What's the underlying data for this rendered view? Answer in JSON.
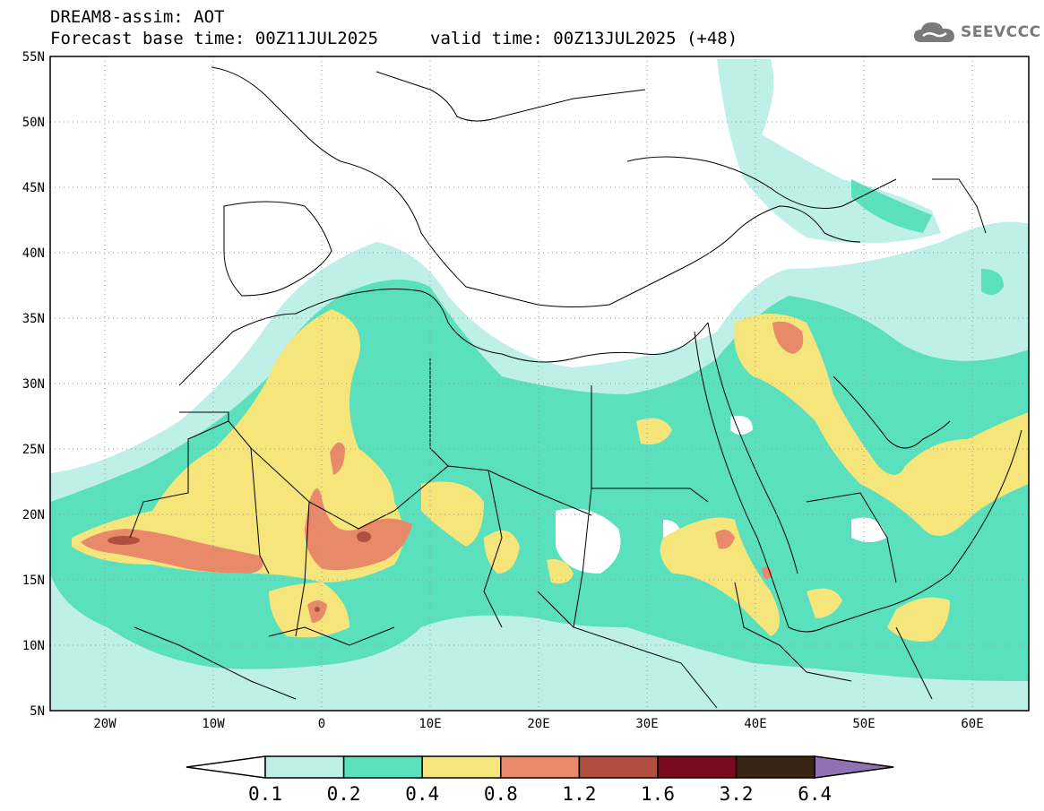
{
  "header": {
    "title_line1": "DREAM8-assim: AOT",
    "base_time": "Forecast base time: 00Z11JUL2025",
    "valid_time": "valid time: 00Z13JUL2025 (+48)"
  },
  "logo": {
    "text": "SEEVCCC",
    "icon": "cloud-icon",
    "color": "#7a7a7a"
  },
  "map": {
    "variable": "AOT",
    "lon_range": [
      -25,
      65
    ],
    "lat_range": [
      5,
      55
    ],
    "lon_ticks": [
      "20W",
      "10W",
      "0",
      "10E",
      "20E",
      "30E",
      "40E",
      "50E",
      "60E"
    ],
    "lat_ticks": [
      "5N",
      "10N",
      "15N",
      "20N",
      "25N",
      "30N",
      "35N",
      "40N",
      "45N",
      "50N",
      "55N"
    ]
  },
  "colorbar": {
    "labels": [
      "0.1",
      "0.2",
      "0.4",
      "0.8",
      "1.2",
      "1.6",
      "3.2",
      "6.4"
    ],
    "colors": [
      "#ffffff",
      "#bff0e8",
      "#5ae0bc",
      "#f5e57a",
      "#e8896a",
      "#b24e3f",
      "#7a0a20",
      "#3a2414",
      "#9072b4"
    ]
  }
}
